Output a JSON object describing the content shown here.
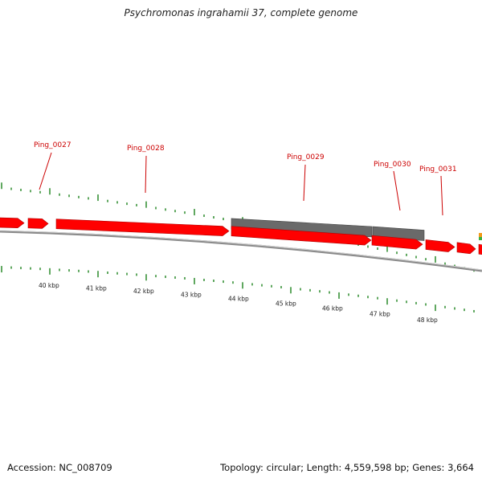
{
  "header": {
    "title": "Psychromonas ingrahamii 37, complete genome"
  },
  "footer": {
    "accession": "Accession: NC_008709",
    "summary": "Topology: circular; Length: 4,559,598 bp; Genes: 3,664"
  },
  "colors": {
    "gene_forward": "#ff0000",
    "gene_highlight": "#6a6a6a",
    "backbone": "#8a8a8a",
    "tick": "#2a8a2a",
    "label": "#cc0000"
  },
  "gene_labels": [
    "Ping_0027",
    "Ping_0028",
    "Ping_0029",
    "Ping_0030",
    "Ping_0031"
  ],
  "scale": {
    "labels": [
      "40 kbp",
      "41 kbp",
      "42 kbp",
      "43 kbp",
      "44 kbp",
      "45 kbp",
      "46 kbp",
      "47 kbp",
      "48 kbp"
    ]
  }
}
